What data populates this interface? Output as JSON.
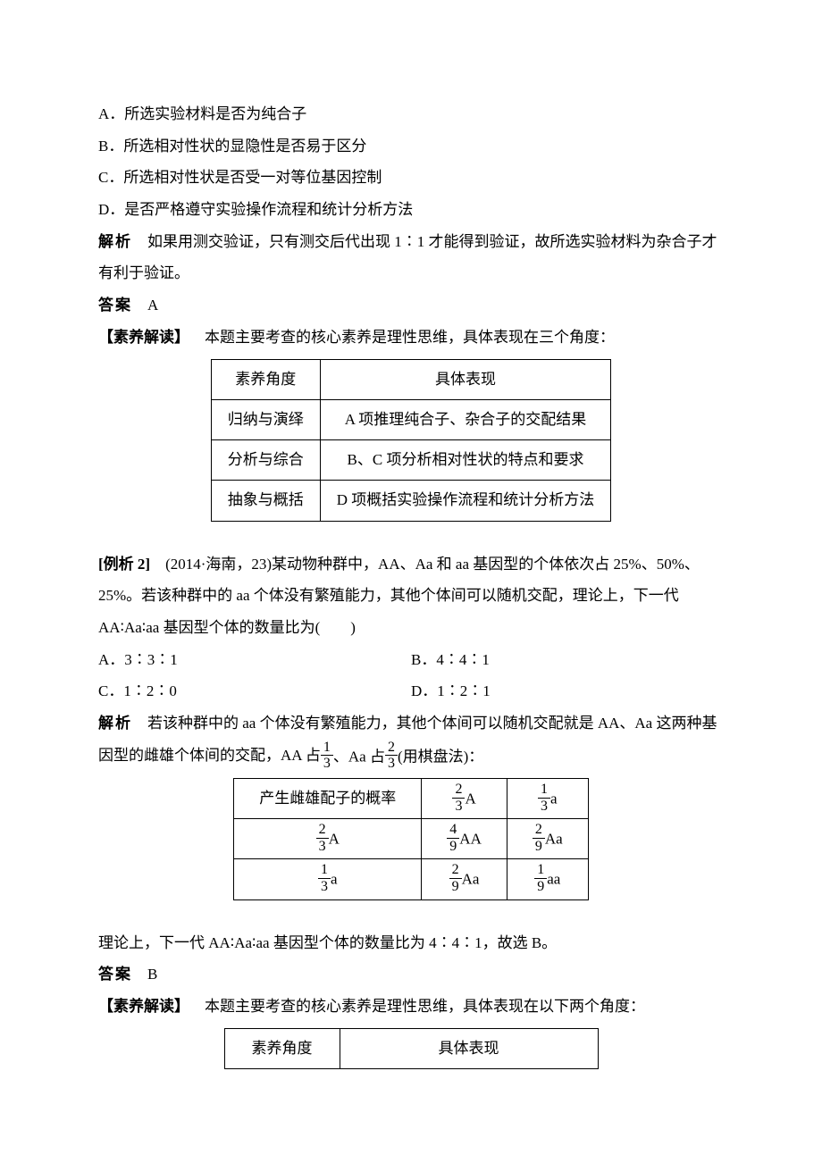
{
  "options": {
    "A": "A．所选实验材料是否为纯合子",
    "B": "B．所选相对性状的显隐性是否易于区分",
    "C": "C．所选相对性状是否受一对等位基因控制",
    "D": "D．是否严格遵守实验操作流程和统计分析方法"
  },
  "explain1_label": "解析",
  "explain1_text": "　如果用测交验证，只有测交后代出现 1∶1 才能得到验证，故所选实验材料为杂合子才",
  "explain1_text2": "有利于验证。",
  "answer_label": "答案",
  "answer1_value": "　A",
  "competency_label": "【素养解读】",
  "competency1_text": "　本题主要考查的核心素养是理性思维，具体表现在三个角度：",
  "table1": {
    "headers": [
      "素养角度",
      "具体表现"
    ],
    "rows": [
      [
        "归纳与演绎",
        "A 项推理纯合子、杂合子的交配结果"
      ],
      [
        "分析与综合",
        "B、C 项分析相对性状的特点和要求"
      ],
      [
        "抽象与概括",
        "D 项概括实验操作流程和统计分析方法"
      ]
    ]
  },
  "example2_label": "[例析 2]",
  "example2_text1": "　(2014·海南，23)某动物种群中，AA、Aa 和 aa 基因型的个体依次占 25%、50%、",
  "example2_text2": "25%。若该种群中的 aa 个体没有繁殖能力，其他个体间可以随机交配，理论上，下一代",
  "example2_text3": "AA∶Aa∶aa 基因型个体的数量比为(　　)",
  "options2": {
    "A": "A．3∶3∶1",
    "B": "B．4∶4∶1",
    "C": "C．1∶2∶0",
    "D": "D．1∶2∶1"
  },
  "explain2_label": "解析",
  "explain2_text1": "　若该种群中的 aa 个体没有繁殖能力，其他个体间可以随机交配就是 AA、Aa 这两种基",
  "explain2_text2a": "因型的雌雄个体间的交配，AA 占",
  "explain2_text2b": "、Aa 占",
  "explain2_text2c": "(用棋盘法)：",
  "frac_AA": {
    "num": "1",
    "den": "3"
  },
  "frac_Aa": {
    "num": "2",
    "den": "3"
  },
  "punnett": {
    "header": "产生雌雄配子的概率",
    "col_A": {
      "num": "2",
      "den": "3",
      "suf": "A"
    },
    "col_a": {
      "num": "1",
      "den": "3",
      "suf": "a"
    },
    "row_A": {
      "num": "2",
      "den": "3",
      "suf": "A"
    },
    "row_a": {
      "num": "1",
      "den": "3",
      "suf": "a"
    },
    "cells": {
      "AA": {
        "num": "4",
        "den": "9",
        "suf": "AA"
      },
      "Aa1": {
        "num": "2",
        "den": "9",
        "suf": "Aa"
      },
      "Aa2": {
        "num": "2",
        "den": "9",
        "suf": "Aa"
      },
      "aa": {
        "num": "1",
        "den": "9",
        "suf": "aa"
      }
    }
  },
  "conclusion2": "理论上，下一代 AA∶Aa∶aa 基因型个体的数量比为 4∶4∶1，故选 B。",
  "answer2_value": "　B",
  "competency2_text": "　本题主要考查的核心素养是理性思维，具体表现在以下两个角度：",
  "table2": {
    "headers": [
      "素养角度",
      "具体表现"
    ]
  }
}
